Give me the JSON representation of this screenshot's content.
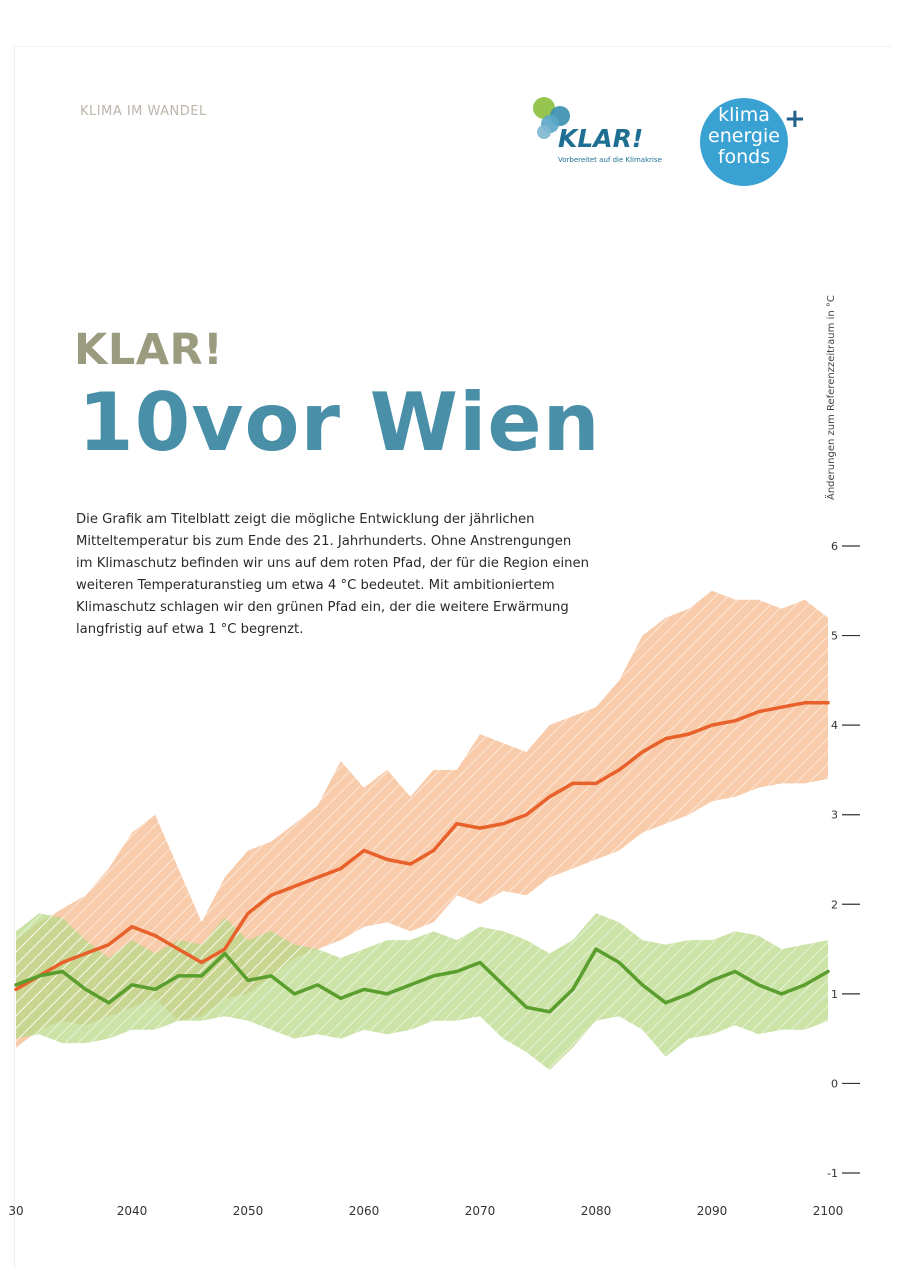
{
  "header": {
    "section_label": "KLIMA IM WANDEL",
    "klar_logo": {
      "word": "KLAR!",
      "tagline": "Vorbereitet auf die Klimakrise"
    },
    "fonds_logo": {
      "lines": [
        "klima",
        "energie",
        "fonds"
      ],
      "plus": "+"
    }
  },
  "title": {
    "small": "KLAR!",
    "large": "10vor Wien"
  },
  "intro_lines": [
    "Die Grafik am Titelblatt zeigt die mögliche Entwicklung der jährlichen",
    "Mitteltemperatur bis zum Ende des 21. Jahrhunderts. Ohne Anstrengungen",
    "im Klimaschutz befinden wir uns auf dem roten Pfad, der für die Region einen",
    "weiteren Temperaturanstieg um etwa 4 °C bedeutet. Mit ambitioniertem",
    "Klimaschutz schlagen wir den grünen Pfad ein, der die weitere Erwärmung",
    "langfristig auf etwa 1 °C begrenzt."
  ],
  "colors": {
    "red_line": "#e8602a",
    "red_band": "#f6b98f",
    "green_line": "#5a9e2e",
    "green_band": "#b9d98a",
    "title_small": "#9b9b7f",
    "title_large": "#4a8fa8",
    "klar_dots": [
      "#8bbf3c",
      "#3a8fb0",
      "#5aa7c9",
      "#7fb8d1"
    ]
  },
  "chart_data": {
    "type": "area",
    "ylabel": "Änderungen zum Referenzzeitraum in °C",
    "ylim": [
      -1,
      6
    ],
    "xlim": [
      2030,
      2100
    ],
    "yticks": [
      "-1",
      "0",
      "1",
      "2",
      "3",
      "4",
      "5",
      "6"
    ],
    "xticks": [
      "30",
      "2040",
      "2050",
      "2060",
      "2070",
      "2080",
      "2090",
      "2100"
    ],
    "x": [
      2030,
      2032,
      2034,
      2036,
      2038,
      2040,
      2042,
      2044,
      2046,
      2048,
      2050,
      2052,
      2054,
      2056,
      2058,
      2060,
      2062,
      2064,
      2066,
      2068,
      2070,
      2072,
      2074,
      2076,
      2078,
      2080,
      2082,
      2084,
      2086,
      2088,
      2090,
      2092,
      2094,
      2096,
      2098,
      2100
    ],
    "series": [
      {
        "color_key": "red",
        "values": [
          1.05,
          1.2,
          1.35,
          1.45,
          1.55,
          1.75,
          1.65,
          1.5,
          1.35,
          1.5,
          1.9,
          2.1,
          2.2,
          2.3,
          2.4,
          2.6,
          2.5,
          2.45,
          2.6,
          2.9,
          2.85,
          2.9,
          3.0,
          3.2,
          3.35,
          3.35,
          3.5,
          3.7,
          3.85,
          3.9,
          4.0,
          4.05,
          4.15,
          4.2,
          4.25,
          4.25
        ],
        "lower": [
          0.4,
          0.6,
          0.7,
          0.65,
          0.75,
          0.85,
          0.95,
          0.7,
          0.75,
          0.95,
          1.0,
          1.2,
          1.4,
          1.5,
          1.6,
          1.75,
          1.8,
          1.7,
          1.8,
          2.1,
          2.0,
          2.15,
          2.1,
          2.3,
          2.4,
          2.5,
          2.6,
          2.8,
          2.9,
          3.0,
          3.15,
          3.2,
          3.3,
          3.35,
          3.35,
          3.4
        ],
        "upper": [
          1.6,
          1.8,
          1.95,
          2.1,
          2.4,
          2.8,
          3.0,
          2.4,
          1.8,
          2.3,
          2.6,
          2.7,
          2.9,
          3.1,
          3.6,
          3.3,
          3.5,
          3.2,
          3.5,
          3.5,
          3.9,
          3.8,
          3.7,
          4.0,
          4.1,
          4.2,
          4.5,
          5.0,
          5.2,
          5.3,
          5.5,
          5.4,
          5.4,
          5.3,
          5.4,
          5.2
        ]
      },
      {
        "color_key": "green",
        "values": [
          1.1,
          1.2,
          1.25,
          1.05,
          0.9,
          1.1,
          1.05,
          1.2,
          1.2,
          1.45,
          1.15,
          1.2,
          1.0,
          1.1,
          0.95,
          1.05,
          1.0,
          1.1,
          1.2,
          1.25,
          1.35,
          1.1,
          0.85,
          0.8,
          1.05,
          1.5,
          1.35,
          1.1,
          0.9,
          1.0,
          1.15,
          1.25,
          1.1,
          1.0,
          1.1,
          1.25
        ],
        "lower": [
          0.5,
          0.55,
          0.45,
          0.45,
          0.5,
          0.6,
          0.6,
          0.7,
          0.7,
          0.75,
          0.7,
          0.6,
          0.5,
          0.55,
          0.5,
          0.6,
          0.55,
          0.6,
          0.7,
          0.7,
          0.75,
          0.5,
          0.35,
          0.15,
          0.4,
          0.7,
          0.75,
          0.6,
          0.3,
          0.5,
          0.55,
          0.65,
          0.55,
          0.6,
          0.6,
          0.7
        ],
        "upper": [
          1.7,
          1.9,
          1.85,
          1.6,
          1.4,
          1.6,
          1.45,
          1.6,
          1.55,
          1.85,
          1.6,
          1.7,
          1.55,
          1.5,
          1.4,
          1.5,
          1.6,
          1.6,
          1.7,
          1.6,
          1.75,
          1.7,
          1.6,
          1.45,
          1.6,
          1.9,
          1.8,
          1.6,
          1.55,
          1.6,
          1.6,
          1.7,
          1.65,
          1.5,
          1.55,
          1.6
        ]
      }
    ]
  }
}
